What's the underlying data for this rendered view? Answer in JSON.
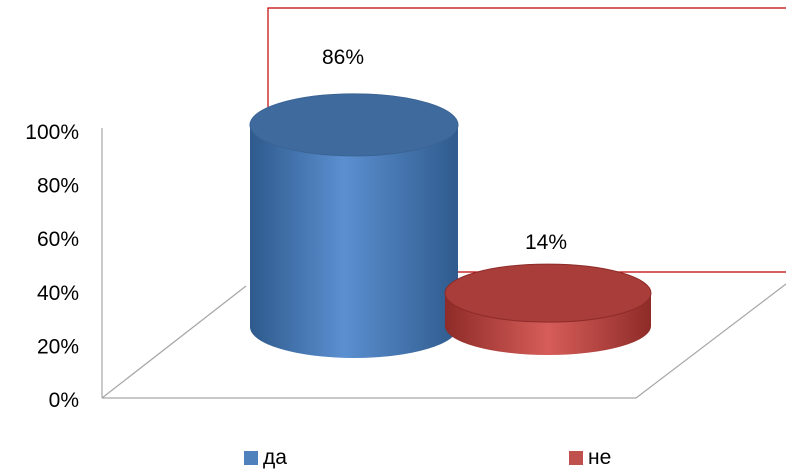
{
  "chart_data": {
    "type": "bar",
    "style": "3d-cylinder",
    "categories": [
      "да",
      "не"
    ],
    "values": [
      86,
      14
    ],
    "data_labels": [
      "86%",
      "14%"
    ],
    "colors": [
      "#4F81BD",
      "#C0504D"
    ],
    "yticks": [
      "0%",
      "20%",
      "40%",
      "60%",
      "80%",
      "100%"
    ],
    "ylim": [
      0,
      100
    ],
    "legend": {
      "placement": "bottom",
      "items": [
        {
          "label": "да",
          "color": "#4F81BD"
        },
        {
          "label": "не",
          "color": "#C0504D"
        }
      ]
    },
    "grid": false
  }
}
